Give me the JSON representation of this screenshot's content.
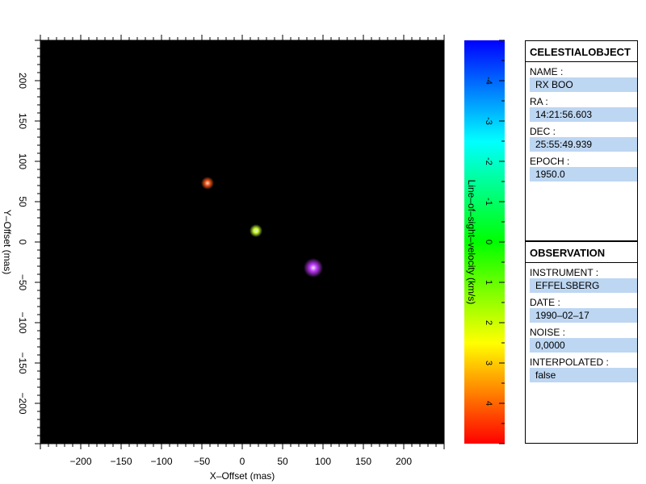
{
  "chart_data": {
    "type": "scatter",
    "xlabel": "X–Offset (mas)",
    "ylabel": "Y–Offset (mas)",
    "xlim": [
      -250,
      250
    ],
    "ylim": [
      -250,
      250
    ],
    "xticks": [
      -200,
      -150,
      -100,
      -50,
      0,
      50,
      100,
      150,
      200
    ],
    "yticks": [
      -200,
      -150,
      -100,
      -50,
      0,
      50,
      100,
      150,
      200
    ],
    "background": "#000000",
    "points": [
      {
        "x": -43,
        "y": 73,
        "velocity": 3.8,
        "color": "#ff5a1a",
        "size": "small"
      },
      {
        "x": 17,
        "y": 14,
        "velocity": 2.6,
        "color": "#ccff33",
        "size": "small"
      },
      {
        "x": 88,
        "y": -32,
        "velocity": -5.0,
        "color": "#c23bff",
        "size": "large"
      }
    ],
    "colorbar": {
      "label": "Line–of–sight–velocity (km/s)",
      "range": [
        -5,
        5
      ],
      "ticks": [
        -4,
        -3,
        -2,
        -1,
        0,
        1,
        2,
        3,
        4
      ],
      "tick_labels": [
        "-4",
        "-3",
        "-2",
        "-1",
        "0",
        "1",
        "2",
        "3",
        "4"
      ],
      "colors": [
        "#0000ff",
        "#00ffff",
        "#00ff00",
        "#ffff00",
        "#ff0000"
      ]
    }
  },
  "celestial": {
    "title": "CELESTIALOBJECT",
    "fields": [
      {
        "label": "NAME :",
        "value": "RX BOO"
      },
      {
        "label": "RA :",
        "value": "14:21:56.603"
      },
      {
        "label": "DEC :",
        "value": "25:55:49.939"
      },
      {
        "label": "EPOCH :",
        "value": "1950.0"
      }
    ]
  },
  "observation": {
    "title": "OBSERVATION",
    "fields": [
      {
        "label": "INSTRUMENT :",
        "value": "EFFELSBERG"
      },
      {
        "label": "DATE :",
        "value": "1990–02–17"
      },
      {
        "label": "NOISE :",
        "value": "0,0000"
      },
      {
        "label": "INTERPOLATED :",
        "value": "false"
      }
    ]
  }
}
